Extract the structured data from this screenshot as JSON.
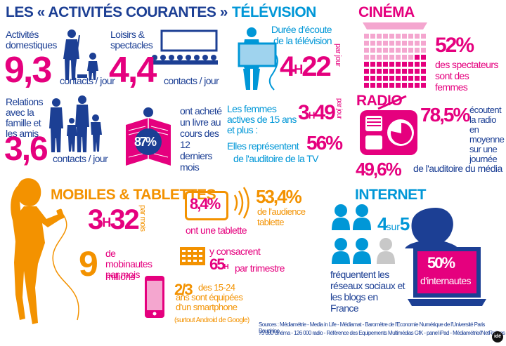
{
  "colors": {
    "navy": "#1c3f94",
    "pink": "#e5007e",
    "orange": "#f39200",
    "blue": "#0097d7",
    "lightpink": "#f4a6cf",
    "lightblue": "#9fd3ee",
    "grey": "#c8c8c8"
  },
  "activites": {
    "title": "LES « ACTIVITÉS COURANTES »",
    "domestiques": {
      "label": "Activités domestiques",
      "value": "9,3",
      "unit": "contacts / jour"
    },
    "loisirs": {
      "label": "Loisirs & spectacles",
      "value": "4,4",
      "unit": "contacts / jour"
    },
    "relations": {
      "label": "Relations avec la famille et les amis",
      "value": "3,6",
      "unit": "contacts / jour"
    },
    "livre": {
      "value": "87%",
      "label": "ont acheté un livre au cours des 12 derniers mois"
    }
  },
  "television": {
    "title": "TÉLÉVISION",
    "duree_label": "Durée d'écoute de la télévision",
    "duree_h": "4",
    "duree_hmark": "H",
    "duree_min": "22",
    "per_day": "par jour",
    "femmes_label": "Les femmes actives de 15 ans et plus :",
    "femmes_h": "3",
    "femmes_hmark": "H",
    "femmes_min": "49",
    "elles_label": "Elles représentent",
    "elles_value": "56%",
    "elles_label2": "de l'auditoire de la TV"
  },
  "cinema": {
    "title": "CINÉMA",
    "value": "52%",
    "label": "des spectateurs sont des femmes",
    "fill": 0.52
  },
  "radio": {
    "title": "RADIO",
    "value": "78,5%",
    "label": "écoutent la radio en moyenne sur une journée",
    "value2": "49,6%",
    "label2": "de l'auditoire du média"
  },
  "mobiles": {
    "title": "MOBILES & TABLETTES",
    "time_h": "3",
    "time_hmark": "H",
    "time_min": "32",
    "per_month": "par mois",
    "tablette_value": "8,4%",
    "tablette_label": "ont une tablette",
    "audience_value": "53,4%",
    "audience_label": "de l'audience tablette",
    "mobinautes_value": "9",
    "mobinautes_label": "de mobinautes par mois",
    "millions": "millions",
    "consacrent_label": "y consacrent",
    "consacrent_h": "65",
    "consacrent_hmark": "H",
    "consacrent_suffix": "par trimestre",
    "smartphone_value": "2/3",
    "smartphone_label": "des 15-24 ans sont équipées d'un smartphone",
    "smartphone_note": "(surtout Android de Google)"
  },
  "internet": {
    "title": "INTERNET",
    "ratio_a": "4",
    "ratio_word": "sur",
    "ratio_b": "5",
    "label": "fréquentent les réseaux sociaux et les blogs en France",
    "value": "50%",
    "value_label": "d'internautes"
  },
  "sources": {
    "line1": "Sources : Médiamétrie - Media in Life - Médiamat - Baromètre de l'Economie Numérique de l'Université Paris Dauphine",
    "line2": "75 000 cinéma - 126 000 radio - Référence des Equipements Multimédias GfK - panel iPad - Médiamétrie//NetRatings"
  },
  "badge": {
    "text": "idé"
  },
  "icons": [
    "mop-person-icon",
    "cinema-screen-icon",
    "family-icon",
    "book-reader-icon",
    "tv-woman-icon",
    "cinema-seats-icon",
    "radio-icon",
    "woman-phone-icon",
    "tablet-icon",
    "signal-waves-icon",
    "calendar-icon",
    "smartphone-icon",
    "people-group-icon",
    "laptop-woman-icon"
  ]
}
